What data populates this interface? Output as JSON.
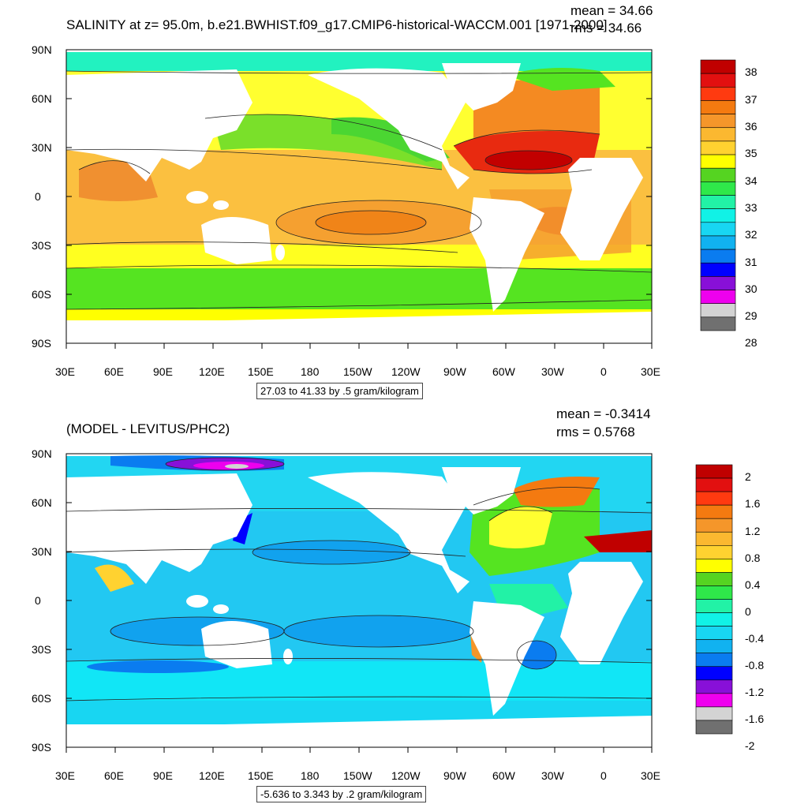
{
  "panels": [
    {
      "id": "top",
      "title": "SALINITY at z=  95.0m, b.e21.BWHIST.f09_g17.CMIP6-historical-WACCM.001 [1971-2000]",
      "stats": [
        "mean = 34.66",
        "rms = 34.66"
      ],
      "lat_labels": [
        "90N",
        "60N",
        "30N",
        "0",
        "30S",
        "60S",
        "90S"
      ],
      "lon_labels": [
        "30E",
        "60E",
        "90E",
        "120E",
        "150E",
        "180",
        "150W",
        "120W",
        "90W",
        "60W",
        "30W",
        "0",
        "30E"
      ],
      "contour_info": "27.03 to 41.33 by .5 gram/kilogram",
      "colorbar_labels": [
        "38",
        "37",
        "36",
        "35",
        "34",
        "33",
        "32",
        "31",
        "30",
        "29",
        "28"
      ],
      "colorbar_colors": [
        "#c00000",
        "#e21010",
        "#ff3a10",
        "#f47a10",
        "#f5962a",
        "#fbb830",
        "#ffd230",
        "#ffff00",
        "#55d421",
        "#2fe84a",
        "#22f2a6",
        "#11f2e6",
        "#18d6f2",
        "#11b2f0",
        "#0a7cf0",
        "#0000ff",
        "#8810d8",
        "#ee00ee",
        "#d3d3d3",
        "#707070"
      ]
    },
    {
      "id": "bottom",
      "title": "(MODEL - LEVITUS/PHC2)",
      "stats": [
        "mean = -0.3414",
        "rms = 0.5768"
      ],
      "lat_labels": [
        "90N",
        "60N",
        "30N",
        "0",
        "30S",
        "60S",
        "90S"
      ],
      "lon_labels": [
        "30E",
        "60E",
        "90E",
        "120E",
        "150E",
        "180",
        "150W",
        "120W",
        "90W",
        "60W",
        "30W",
        "0",
        "30E"
      ],
      "contour_info": "-5.636 to 3.343 by .2 gram/kilogram",
      "colorbar_labels": [
        "2",
        "1.6",
        "1.2",
        "0.8",
        "0.4",
        "0",
        "-0.4",
        "-0.8",
        "-1.2",
        "-1.6",
        "-2"
      ],
      "colorbar_colors": [
        "#c00000",
        "#e21010",
        "#ff3a10",
        "#f47a10",
        "#f5962a",
        "#fbb830",
        "#ffd230",
        "#ffff00",
        "#55d421",
        "#2fe84a",
        "#22f2a6",
        "#11f2e6",
        "#18d6f2",
        "#11b2f0",
        "#0a7cf0",
        "#0000ff",
        "#8810d8",
        "#ee00ee",
        "#d3d3d3",
        "#707070"
      ]
    }
  ]
}
